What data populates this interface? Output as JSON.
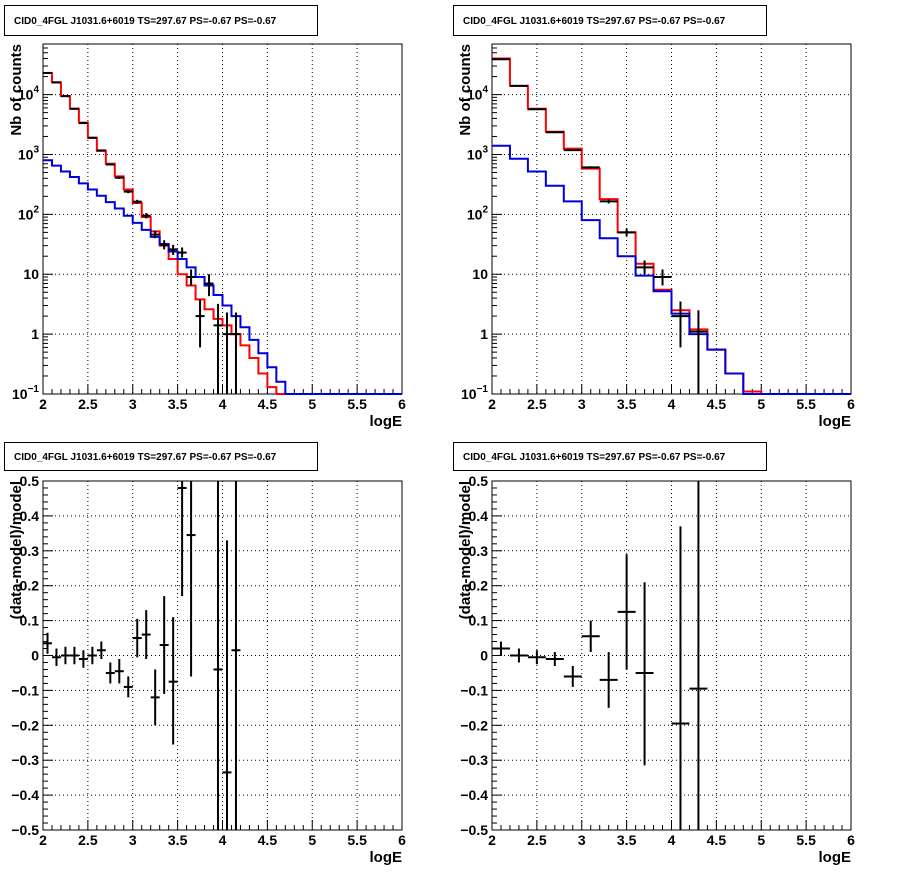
{
  "colors": {
    "data": "#000000",
    "model_total": "#ff0000",
    "model_source": "#0000dd",
    "grid": "#000000"
  },
  "chart_data": [
    {
      "type": "line",
      "title": "CID0_4FGL J1031.6+6019 TS=297.67 PS=-0.67 PS=-0.67",
      "xlabel": "logE",
      "ylabel": "Nb of counts",
      "xlim": [
        2,
        6
      ],
      "ylim": [
        0.1,
        70000
      ],
      "yscale": "log",
      "grid": true,
      "xticks": [
        "2",
        "2.5",
        "3",
        "3.5",
        "4",
        "4.5",
        "5",
        "5.5",
        "6"
      ],
      "yticks": [
        {
          "value": 0.1,
          "label": "10",
          "exp": "−1"
        },
        {
          "value": 1,
          "label": "1"
        },
        {
          "value": 10,
          "label": "10"
        },
        {
          "value": 100,
          "label": "10",
          "exp": "2"
        },
        {
          "value": 1000,
          "label": "10",
          "exp": "3"
        },
        {
          "value": 10000,
          "label": "10",
          "exp": "4"
        }
      ],
      "bin_edges": [
        2.0,
        2.1,
        2.2,
        2.3,
        2.4,
        2.5,
        2.6,
        2.7,
        2.8,
        2.9,
        3.0,
        3.1,
        3.2,
        3.3,
        3.4,
        3.5,
        3.6,
        3.7,
        3.8,
        3.9,
        4.0,
        4.1,
        4.2,
        4.3,
        4.4,
        4.5,
        4.6,
        4.7,
        4.8,
        4.9,
        5.0,
        5.1,
        5.2,
        5.3,
        5.4,
        5.5,
        5.6,
        5.7,
        5.8,
        5.9,
        6.0
      ],
      "series": [
        {
          "style": "step",
          "color_key": "model_total",
          "values": [
            23000,
            16000,
            9500,
            5800,
            3400,
            1900,
            1150,
            700,
            430,
            260,
            155,
            90,
            52,
            30,
            18,
            10,
            6.5,
            3.8,
            2.6,
            1.8,
            1.4,
            1.0,
            0.65,
            0.4,
            0.22,
            0.13,
            0.1,
            0.1,
            0.1,
            0.1,
            0.1,
            0.1,
            0.1,
            0.1,
            0.1,
            0.1,
            0.1,
            0.1,
            0.1,
            0.1
          ]
        },
        {
          "style": "step",
          "color_key": "model_source",
          "values": [
            800,
            650,
            520,
            420,
            330,
            260,
            205,
            160,
            125,
            95,
            72,
            55,
            42,
            32,
            24,
            18,
            13,
            9,
            6.5,
            4.5,
            3.0,
            2.0,
            1.3,
            0.8,
            0.48,
            0.28,
            0.16,
            0.1,
            0.1,
            0.1,
            0.1,
            0.1,
            0.1,
            0.1,
            0.1,
            0.1,
            0.1,
            0.1,
            0.1,
            0.1
          ]
        },
        {
          "style": "errorbar",
          "color_key": "data",
          "xerr": 0.05,
          "points": [
            {
              "x": 2.05,
              "y": 23000,
              "lo": 22800,
              "hi": 23200
            },
            {
              "x": 2.15,
              "y": 16000,
              "lo": 15800,
              "hi": 16200
            },
            {
              "x": 2.25,
              "y": 9400,
              "lo": 9300,
              "hi": 9500
            },
            {
              "x": 2.35,
              "y": 5800,
              "lo": 5700,
              "hi": 5900
            },
            {
              "x": 2.45,
              "y": 3350,
              "lo": 3300,
              "hi": 3400
            },
            {
              "x": 2.55,
              "y": 1900,
              "lo": 1860,
              "hi": 1940
            },
            {
              "x": 2.65,
              "y": 1170,
              "lo": 1140,
              "hi": 1200
            },
            {
              "x": 2.75,
              "y": 680,
              "lo": 655,
              "hi": 705
            },
            {
              "x": 2.85,
              "y": 410,
              "lo": 390,
              "hi": 430
            },
            {
              "x": 2.95,
              "y": 240,
              "lo": 225,
              "hi": 255
            },
            {
              "x": 3.05,
              "y": 163,
              "lo": 151,
              "hi": 175
            },
            {
              "x": 3.15,
              "y": 95,
              "lo": 86,
              "hi": 105
            },
            {
              "x": 3.25,
              "y": 46,
              "lo": 40,
              "hi": 53
            },
            {
              "x": 3.35,
              "y": 31,
              "lo": 26,
              "hi": 37
            },
            {
              "x": 3.45,
              "y": 26,
              "lo": 21,
              "hi": 31
            },
            {
              "x": 3.55,
              "y": 23,
              "lo": 19,
              "hi": 28
            },
            {
              "x": 3.65,
              "y": 9,
              "lo": 6.5,
              "hi": 12
            },
            {
              "x": 3.75,
              "y": 2,
              "lo": 0.6,
              "hi": 3.8
            },
            {
              "x": 3.85,
              "y": 7,
              "lo": 4.3,
              "hi": 10
            },
            {
              "x": 3.95,
              "y": 1.4,
              "lo": 0.1,
              "hi": 3.2
            },
            {
              "x": 4.05,
              "y": 1.0,
              "lo": 0.1,
              "hi": 2.3
            },
            {
              "x": 4.15,
              "y": 1.0,
              "lo": 0.1,
              "hi": 2.3
            }
          ]
        }
      ]
    },
    {
      "type": "line",
      "title": "CID0_4FGL J1031.6+6019 TS=297.67 PS=-0.67 PS=-0.67",
      "xlabel": "logE",
      "ylabel": "Nb of counts",
      "xlim": [
        2,
        6
      ],
      "ylim": [
        0.1,
        70000
      ],
      "yscale": "log",
      "grid": true,
      "xticks": [
        "2",
        "2.5",
        "3",
        "3.5",
        "4",
        "4.5",
        "5",
        "5.5",
        "6"
      ],
      "yticks": [
        {
          "value": 0.1,
          "label": "10",
          "exp": "−1"
        },
        {
          "value": 1,
          "label": "1"
        },
        {
          "value": 10,
          "label": "10"
        },
        {
          "value": 100,
          "label": "10",
          "exp": "2"
        },
        {
          "value": 1000,
          "label": "10",
          "exp": "3"
        },
        {
          "value": 10000,
          "label": "10",
          "exp": "4"
        }
      ],
      "bin_edges": [
        2.0,
        2.2,
        2.4,
        2.6,
        2.8,
        3.0,
        3.2,
        3.4,
        3.6,
        3.8,
        4.0,
        4.2,
        4.4,
        4.6,
        4.8,
        5.0,
        5.2,
        5.4,
        5.6,
        5.8,
        6.0
      ],
      "series": [
        {
          "style": "step",
          "color_key": "model_total",
          "values": [
            40000,
            14000,
            5800,
            2400,
            1250,
            580,
            180,
            50,
            15,
            5.5,
            2.5,
            1.2,
            0.55,
            0.22,
            0.11,
            0.1,
            0.1,
            0.1,
            0.1,
            0.1
          ]
        },
        {
          "style": "step",
          "color_key": "model_source",
          "values": [
            1400,
            850,
            520,
            300,
            165,
            80,
            40,
            20,
            9.5,
            5.2,
            2.2,
            1.0,
            0.55,
            0.22,
            0.1,
            0.1,
            0.1,
            0.1,
            0.1,
            0.1
          ]
        },
        {
          "style": "errorbar",
          "color_key": "data",
          "xerr": 0.1,
          "points": [
            {
              "x": 2.1,
              "y": 39000,
              "lo": 38800,
              "hi": 39200
            },
            {
              "x": 2.3,
              "y": 14000,
              "lo": 13880,
              "hi": 14120
            },
            {
              "x": 2.5,
              "y": 5700,
              "lo": 5620,
              "hi": 5780
            },
            {
              "x": 2.7,
              "y": 2350,
              "lo": 2300,
              "hi": 2400
            },
            {
              "x": 2.9,
              "y": 1180,
              "lo": 1150,
              "hi": 1210
            },
            {
              "x": 3.1,
              "y": 610,
              "lo": 585,
              "hi": 635
            },
            {
              "x": 3.3,
              "y": 165,
              "lo": 152,
              "hi": 178
            },
            {
              "x": 3.5,
              "y": 50,
              "lo": 43,
              "hi": 58
            },
            {
              "x": 3.7,
              "y": 13,
              "lo": 10,
              "hi": 17
            },
            {
              "x": 3.9,
              "y": 9,
              "lo": 6.5,
              "hi": 12
            },
            {
              "x": 4.1,
              "y": 2,
              "lo": 0.6,
              "hi": 3.5
            },
            {
              "x": 4.3,
              "y": 1.1,
              "lo": 0.1,
              "hi": 2.5
            }
          ]
        }
      ]
    },
    {
      "type": "scatter",
      "title": "CID0_4FGL J1031.6+6019 TS=297.67 PS=-0.67 PS=-0.67",
      "xlabel": "logE",
      "ylabel": "(data-model)/model",
      "xlim": [
        2,
        6
      ],
      "ylim": [
        -0.5,
        0.5
      ],
      "yscale": "linear",
      "grid": true,
      "xticks": [
        "2",
        "2.5",
        "3",
        "3.5",
        "4",
        "4.5",
        "5",
        "5.5",
        "6"
      ],
      "yticks": [
        {
          "value": -0.5,
          "label": "−0.5"
        },
        {
          "value": -0.4,
          "label": "−0.4"
        },
        {
          "value": -0.3,
          "label": "−0.3"
        },
        {
          "value": -0.2,
          "label": "−0.2"
        },
        {
          "value": -0.1,
          "label": "−0.1"
        },
        {
          "value": 0,
          "label": "0"
        },
        {
          "value": 0.1,
          "label": "0.1"
        },
        {
          "value": 0.2,
          "label": "0.2"
        },
        {
          "value": 0.3,
          "label": "0.3"
        },
        {
          "value": 0.4,
          "label": "0.4"
        },
        {
          "value": 0.5,
          "label": "0.5"
        }
      ],
      "series": [
        {
          "style": "errorbar",
          "color_key": "data",
          "xerr": 0.05,
          "points": [
            {
              "x": 2.05,
              "y": 0.035,
              "lo": 0.005,
              "hi": 0.065
            },
            {
              "x": 2.15,
              "y": -0.005,
              "lo": -0.03,
              "hi": 0.02
            },
            {
              "x": 2.25,
              "y": 0.0,
              "lo": -0.025,
              "hi": 0.025
            },
            {
              "x": 2.35,
              "y": 0.0,
              "lo": -0.025,
              "hi": 0.025
            },
            {
              "x": 2.45,
              "y": -0.01,
              "lo": -0.035,
              "hi": 0.015
            },
            {
              "x": 2.55,
              "y": 0.0,
              "lo": -0.025,
              "hi": 0.025
            },
            {
              "x": 2.65,
              "y": 0.015,
              "lo": -0.01,
              "hi": 0.04
            },
            {
              "x": 2.75,
              "y": -0.05,
              "lo": -0.08,
              "hi": -0.02
            },
            {
              "x": 2.85,
              "y": -0.045,
              "lo": -0.08,
              "hi": -0.01
            },
            {
              "x": 2.95,
              "y": -0.09,
              "lo": -0.12,
              "hi": -0.06
            },
            {
              "x": 3.05,
              "y": 0.05,
              "lo": -0.005,
              "hi": 0.105
            },
            {
              "x": 3.15,
              "y": 0.06,
              "lo": -0.01,
              "hi": 0.13
            },
            {
              "x": 3.25,
              "y": -0.12,
              "lo": -0.2,
              "hi": -0.04
            },
            {
              "x": 3.35,
              "y": 0.03,
              "lo": -0.11,
              "hi": 0.17
            },
            {
              "x": 3.45,
              "y": -0.075,
              "lo": -0.255,
              "hi": 0.11
            },
            {
              "x": 3.55,
              "y": 0.48,
              "lo": 0.17,
              "hi": 0.5
            },
            {
              "x": 3.65,
              "y": 0.345,
              "lo": -0.06,
              "hi": 0.5
            },
            {
              "x": 3.95,
              "y": -0.04,
              "lo": -0.5,
              "hi": 0.5
            },
            {
              "x": 4.05,
              "y": -0.335,
              "lo": -0.5,
              "hi": 0.33
            },
            {
              "x": 4.15,
              "y": 0.015,
              "lo": -0.5,
              "hi": 0.5
            }
          ]
        }
      ]
    },
    {
      "type": "scatter",
      "title": "CID0_4FGL J1031.6+6019 TS=297.67 PS=-0.67 PS=-0.67",
      "xlabel": "logE",
      "ylabel": "(data-model)/model",
      "xlim": [
        2,
        6
      ],
      "ylim": [
        -0.5,
        0.5
      ],
      "yscale": "linear",
      "grid": true,
      "xticks": [
        "2",
        "2.5",
        "3",
        "3.5",
        "4",
        "4.5",
        "5",
        "5.5",
        "6"
      ],
      "yticks": [
        {
          "value": -0.5,
          "label": "−0.5"
        },
        {
          "value": -0.4,
          "label": "−0.4"
        },
        {
          "value": -0.3,
          "label": "−0.3"
        },
        {
          "value": -0.2,
          "label": "−0.2"
        },
        {
          "value": -0.1,
          "label": "−0.1"
        },
        {
          "value": 0,
          "label": "0"
        },
        {
          "value": 0.1,
          "label": "0.1"
        },
        {
          "value": 0.2,
          "label": "0.2"
        },
        {
          "value": 0.3,
          "label": "0.3"
        },
        {
          "value": 0.4,
          "label": "0.4"
        },
        {
          "value": 0.5,
          "label": "0.5"
        }
      ],
      "series": [
        {
          "style": "errorbar",
          "color_key": "data",
          "xerr": 0.1,
          "points": [
            {
              "x": 2.1,
              "y": 0.02,
              "lo": 0.0,
              "hi": 0.04
            },
            {
              "x": 2.3,
              "y": 0.0,
              "lo": -0.02,
              "hi": 0.02
            },
            {
              "x": 2.5,
              "y": -0.005,
              "lo": -0.025,
              "hi": 0.015
            },
            {
              "x": 2.7,
              "y": -0.01,
              "lo": -0.03,
              "hi": 0.01
            },
            {
              "x": 2.9,
              "y": -0.06,
              "lo": -0.09,
              "hi": -0.03
            },
            {
              "x": 3.1,
              "y": 0.055,
              "lo": 0.01,
              "hi": 0.1
            },
            {
              "x": 3.3,
              "y": -0.07,
              "lo": -0.15,
              "hi": 0.01
            },
            {
              "x": 3.5,
              "y": 0.125,
              "lo": -0.04,
              "hi": 0.29
            },
            {
              "x": 3.7,
              "y": -0.05,
              "lo": -0.315,
              "hi": 0.21
            },
            {
              "x": 4.1,
              "y": -0.195,
              "lo": -0.5,
              "hi": 0.37
            },
            {
              "x": 4.3,
              "y": -0.095,
              "lo": -0.5,
              "hi": 0.5
            }
          ]
        }
      ]
    }
  ]
}
